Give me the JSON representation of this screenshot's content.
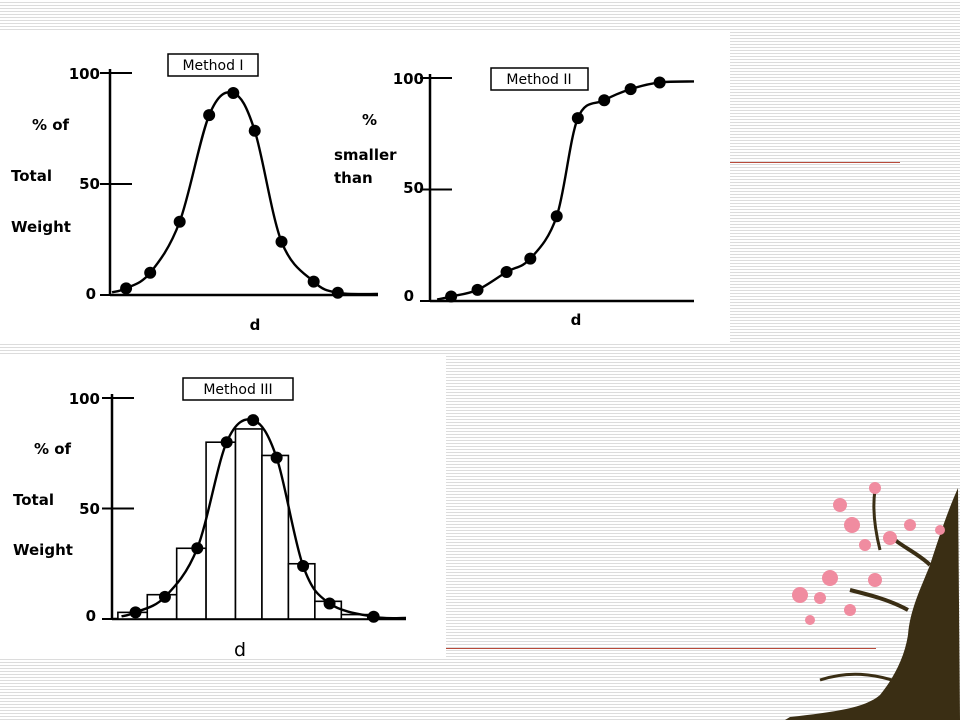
{
  "chart_data": [
    {
      "type": "line",
      "title": "Method I",
      "xlabel": "d",
      "ylabel_lines": [
        "% of",
        "Total",
        "Weight"
      ],
      "yticks": [
        "0",
        "50",
        "100"
      ],
      "ylim": [
        0,
        100
      ],
      "xlim": [
        0,
        10
      ],
      "x": [
        0.6,
        1.5,
        2.6,
        3.7,
        4.6,
        5.4,
        6.4,
        7.6,
        8.5
      ],
      "y": [
        3,
        10,
        33,
        81,
        91,
        74,
        24,
        6,
        1
      ]
    },
    {
      "type": "line",
      "title": "Method II",
      "xlabel": "d",
      "ylabel_lines": [
        "%",
        "smaller",
        "than"
      ],
      "yticks": [
        "0",
        "50",
        "100"
      ],
      "ylim": [
        0,
        100
      ],
      "xlim": [
        0,
        10
      ],
      "x": [
        0.8,
        1.8,
        2.9,
        3.8,
        4.8,
        5.6,
        6.6,
        7.6,
        8.7
      ],
      "y": [
        2,
        5,
        13,
        19,
        38,
        82,
        90,
        95,
        98
      ]
    },
    {
      "type": "bar",
      "title": "Method III",
      "xlabel": "d",
      "ylabel_lines": [
        "% of",
        "Total",
        "Weight"
      ],
      "yticks": [
        "0",
        "50",
        "100"
      ],
      "ylim": [
        0,
        100
      ],
      "xlim": [
        0,
        10
      ],
      "bar_edges": [
        0.2,
        1.2,
        2.2,
        3.2,
        4.2,
        5.1,
        6.0,
        6.9,
        7.8,
        8.7
      ],
      "bar_values": [
        3,
        11,
        32,
        80,
        86,
        74,
        25,
        8,
        2
      ],
      "x": [
        0.8,
        1.8,
        2.9,
        3.9,
        4.8,
        5.6,
        6.5,
        7.4,
        8.9
      ],
      "y": [
        3,
        10,
        32,
        80,
        90,
        73,
        24,
        7,
        1
      ]
    }
  ]
}
